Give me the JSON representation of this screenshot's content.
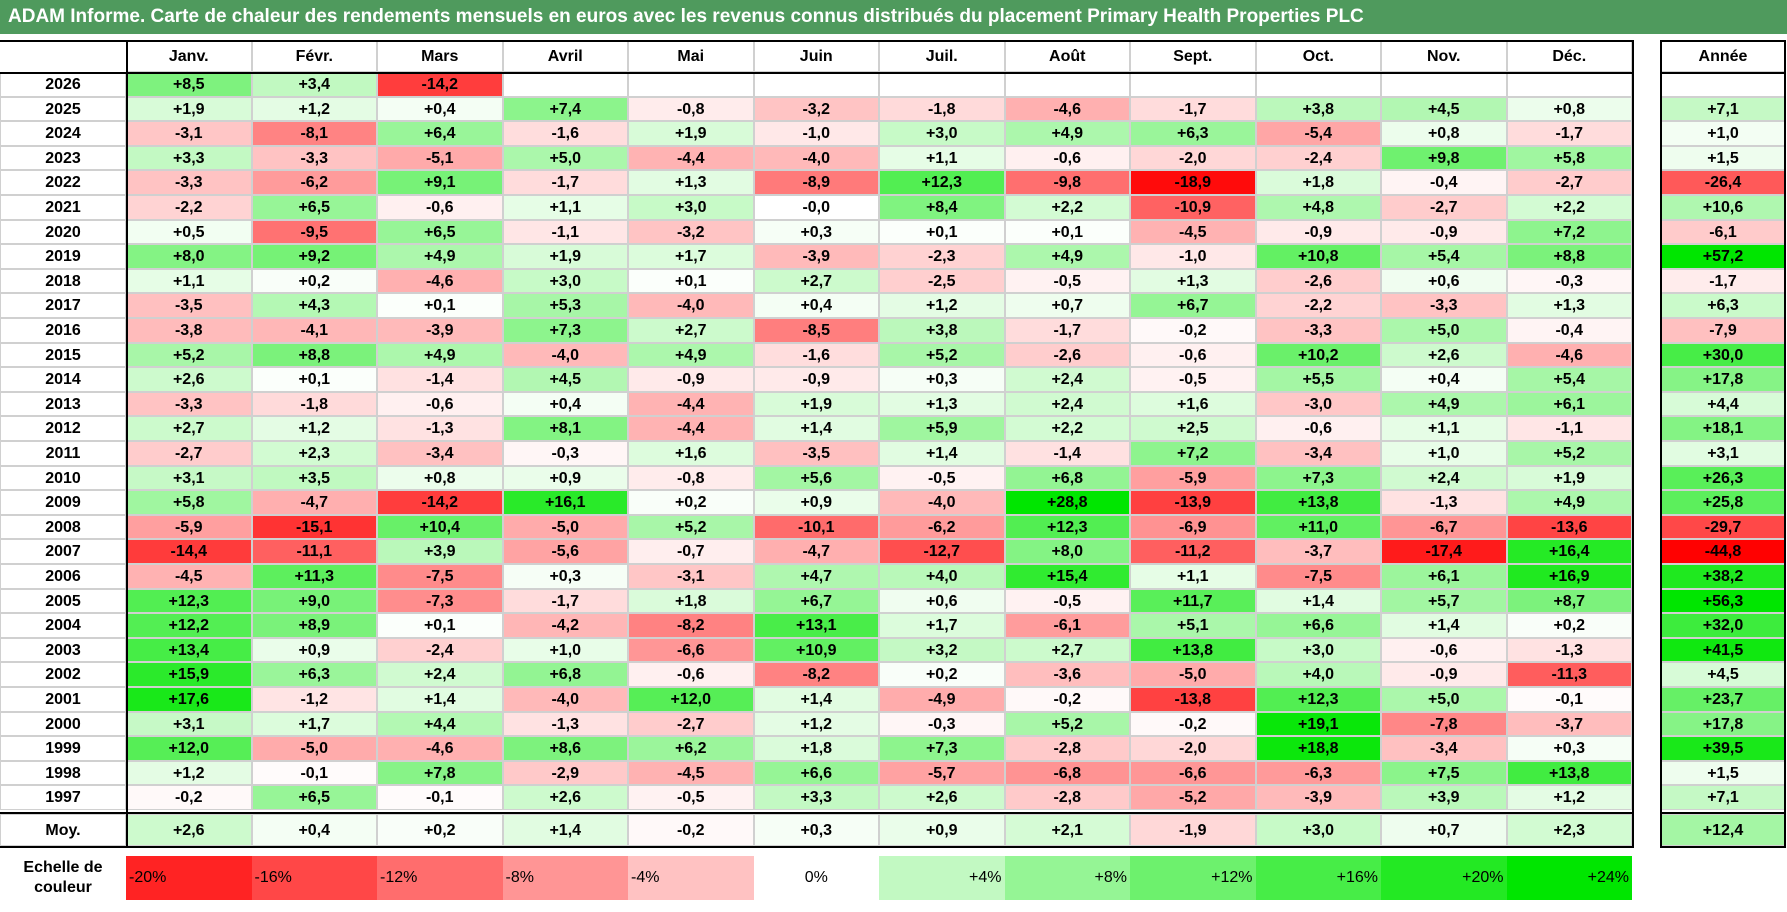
{
  "title": "ADAM Informe. Carte de chaleur des rendements mensuels en euros avec les revenus connus distribués du placement Primary Health Properties PLC",
  "chart_data": {
    "type": "heatmap",
    "title": "ADAM Informe. Carte de chaleur des rendements mensuels en euros avec les revenus connus distribués du placement Primary Health Properties PLC",
    "months": [
      "Janv.",
      "Févr.",
      "Mars",
      "Avril",
      "Mai",
      "Juin",
      "Juil.",
      "Août",
      "Sept.",
      "Oct.",
      "Nov.",
      "Déc."
    ],
    "year_header": "Année",
    "rows": [
      {
        "year": "2026",
        "values": [
          8.5,
          3.4,
          -14.2,
          null,
          null,
          null,
          null,
          null,
          null,
          null,
          null,
          null
        ],
        "annual": null
      },
      {
        "year": "2025",
        "values": [
          1.9,
          1.2,
          0.4,
          7.4,
          -0.8,
          -3.2,
          -1.8,
          -4.6,
          -1.7,
          3.8,
          4.5,
          0.8
        ],
        "annual": 7.1
      },
      {
        "year": "2024",
        "values": [
          -3.1,
          -8.1,
          6.4,
          -1.6,
          1.9,
          -1.0,
          3.0,
          4.9,
          6.3,
          -5.4,
          0.8,
          -1.7
        ],
        "annual": 1.0
      },
      {
        "year": "2023",
        "values": [
          3.3,
          -3.3,
          -5.1,
          5.0,
          -4.4,
          -4.0,
          1.1,
          -0.6,
          -2.0,
          -2.4,
          9.8,
          5.8
        ],
        "annual": 1.5
      },
      {
        "year": "2022",
        "values": [
          -3.3,
          -6.2,
          9.1,
          -1.7,
          1.3,
          -8.9,
          12.3,
          -9.8,
          -18.9,
          1.8,
          -0.4,
          -2.7
        ],
        "annual": -26.4
      },
      {
        "year": "2021",
        "values": [
          -2.2,
          6.5,
          -0.6,
          1.1,
          3.0,
          -0.0,
          8.4,
          2.2,
          -10.9,
          4.8,
          -2.7,
          2.2
        ],
        "annual": 10.6
      },
      {
        "year": "2020",
        "values": [
          0.5,
          -9.5,
          6.5,
          -1.1,
          -3.2,
          0.3,
          0.1,
          0.1,
          -4.5,
          -0.9,
          -0.9,
          7.2
        ],
        "annual": -6.1
      },
      {
        "year": "2019",
        "values": [
          8.0,
          9.2,
          4.9,
          1.9,
          1.7,
          -3.9,
          -2.3,
          4.9,
          -1.0,
          10.8,
          5.4,
          8.8
        ],
        "annual": 57.2
      },
      {
        "year": "2018",
        "values": [
          1.1,
          0.2,
          -4.6,
          3.0,
          0.1,
          2.7,
          -2.5,
          -0.5,
          1.3,
          -2.6,
          0.6,
          -0.3
        ],
        "annual": -1.7
      },
      {
        "year": "2017",
        "values": [
          -3.5,
          4.3,
          0.1,
          5.3,
          -4.0,
          0.4,
          1.2,
          0.7,
          6.7,
          -2.2,
          -3.3,
          1.3
        ],
        "annual": 6.3
      },
      {
        "year": "2016",
        "values": [
          -3.8,
          -4.1,
          -3.9,
          7.3,
          2.7,
          -8.5,
          3.8,
          -1.7,
          -0.2,
          -3.3,
          5.0,
          -0.4
        ],
        "annual": -7.9
      },
      {
        "year": "2015",
        "values": [
          5.2,
          8.8,
          4.9,
          -4.0,
          4.9,
          -1.6,
          5.2,
          -2.6,
          -0.6,
          10.2,
          2.6,
          -4.6
        ],
        "annual": 30.0
      },
      {
        "year": "2014",
        "values": [
          2.6,
          0.1,
          -1.4,
          4.5,
          -0.9,
          -0.9,
          0.3,
          2.4,
          -0.5,
          5.5,
          0.4,
          5.4
        ],
        "annual": 17.8
      },
      {
        "year": "2013",
        "values": [
          -3.3,
          -1.8,
          -0.6,
          0.4,
          -4.4,
          1.9,
          1.3,
          2.4,
          1.6,
          -3.0,
          4.9,
          6.1
        ],
        "annual": 4.4
      },
      {
        "year": "2012",
        "values": [
          2.7,
          1.2,
          -1.3,
          8.1,
          -4.4,
          1.4,
          5.9,
          2.2,
          2.5,
          -0.6,
          1.1,
          -1.1
        ],
        "annual": 18.1
      },
      {
        "year": "2011",
        "values": [
          -2.7,
          2.3,
          -3.4,
          -0.3,
          1.6,
          -3.5,
          1.4,
          -1.4,
          7.2,
          -3.4,
          1.0,
          5.2
        ],
        "annual": 3.1
      },
      {
        "year": "2010",
        "values": [
          3.1,
          3.5,
          0.8,
          0.9,
          -0.8,
          5.6,
          -0.5,
          6.8,
          -5.9,
          7.3,
          2.4,
          1.9
        ],
        "annual": 26.3
      },
      {
        "year": "2009",
        "values": [
          5.8,
          -4.7,
          -14.2,
          16.1,
          0.2,
          0.9,
          -4.0,
          28.8,
          -13.9,
          13.8,
          -1.3,
          4.9
        ],
        "annual": 25.8
      },
      {
        "year": "2008",
        "values": [
          -5.9,
          -15.1,
          10.4,
          -5.0,
          5.2,
          -10.1,
          -6.2,
          12.3,
          -6.9,
          11.0,
          -6.7,
          -13.6
        ],
        "annual": -29.7
      },
      {
        "year": "2007",
        "values": [
          -14.4,
          -11.1,
          3.9,
          -5.6,
          -0.7,
          -4.7,
          -12.7,
          8.0,
          -11.2,
          -3.7,
          -17.4,
          16.4
        ],
        "annual": -44.8
      },
      {
        "year": "2006",
        "values": [
          -4.5,
          11.3,
          -7.5,
          0.3,
          -3.1,
          4.7,
          4.0,
          15.4,
          1.1,
          -7.5,
          6.1,
          16.9
        ],
        "annual": 38.2
      },
      {
        "year": "2005",
        "values": [
          12.3,
          9.0,
          -7.3,
          -1.7,
          1.8,
          6.7,
          0.6,
          -0.5,
          11.7,
          1.4,
          5.7,
          8.7
        ],
        "annual": 56.3
      },
      {
        "year": "2004",
        "values": [
          12.2,
          8.9,
          0.1,
          -4.2,
          -8.2,
          13.1,
          1.7,
          -6.1,
          5.1,
          6.6,
          1.4,
          0.2
        ],
        "annual": 32.0
      },
      {
        "year": "2003",
        "values": [
          13.4,
          0.9,
          -2.4,
          1.0,
          -6.6,
          10.9,
          3.2,
          2.7,
          13.8,
          3.0,
          -0.6,
          -1.3
        ],
        "annual": 41.5
      },
      {
        "year": "2002",
        "values": [
          15.9,
          6.3,
          2.4,
          6.8,
          -0.6,
          -8.2,
          0.2,
          -3.6,
          -5.0,
          4.0,
          -0.9,
          -11.3
        ],
        "annual": 4.5
      },
      {
        "year": "2001",
        "values": [
          17.6,
          -1.2,
          1.4,
          -4.0,
          12.0,
          1.4,
          -4.9,
          -0.2,
          -13.8,
          12.3,
          5.0,
          -0.1
        ],
        "annual": 23.7
      },
      {
        "year": "2000",
        "values": [
          3.1,
          1.7,
          4.4,
          -1.3,
          -2.7,
          1.2,
          -0.3,
          5.2,
          -0.2,
          19.1,
          -7.8,
          -3.7
        ],
        "annual": 17.8
      },
      {
        "year": "1999",
        "values": [
          12.0,
          -5.0,
          -4.6,
          8.6,
          6.2,
          1.8,
          7.3,
          -2.8,
          -2.0,
          18.8,
          -3.4,
          0.3
        ],
        "annual": 39.5
      },
      {
        "year": "1998",
        "values": [
          1.2,
          -0.1,
          7.8,
          -2.9,
          -4.5,
          6.6,
          -5.7,
          -6.8,
          -6.6,
          -6.3,
          7.5,
          13.8
        ],
        "annual": 1.5
      },
      {
        "year": "1997",
        "values": [
          -0.2,
          6.5,
          -0.1,
          2.6,
          -0.5,
          3.3,
          2.6,
          -2.8,
          -5.2,
          -3.9,
          3.9,
          1.2
        ],
        "annual": 7.1
      }
    ],
    "average": {
      "label": "Moy.",
      "values": [
        2.6,
        0.4,
        0.2,
        1.4,
        -0.2,
        0.3,
        0.9,
        2.1,
        -1.9,
        3.0,
        0.7,
        2.3
      ],
      "annual": 12.4
    },
    "scale": {
      "label_line1": "Echelle de",
      "label_line2": "couleur",
      "stops": [
        -20,
        -16,
        -12,
        -8,
        -4,
        0,
        4,
        8,
        12,
        16,
        20,
        24
      ],
      "labels": [
        "-20%",
        "-16%",
        "-12%",
        "-8%",
        "-4%",
        "0%",
        "+4%",
        "+8%",
        "+12%",
        "+16%",
        "+20%",
        "+24%"
      ]
    },
    "colors": {
      "negative_max": "#ff0000",
      "positive_max": "#00e600",
      "neutral": "#ffffff",
      "title_bar": "#4f9a5d"
    }
  }
}
